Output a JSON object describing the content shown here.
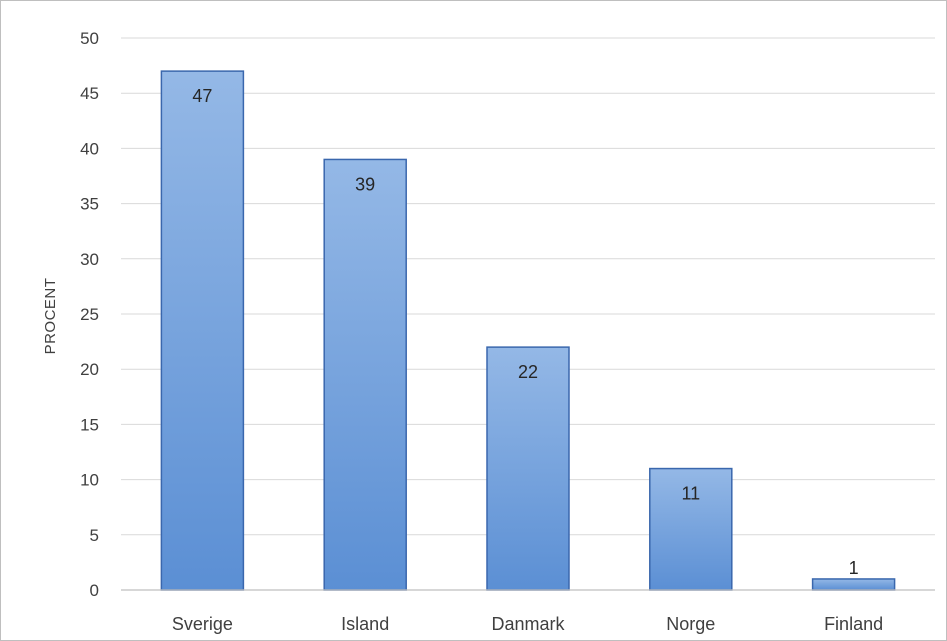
{
  "chart_data": {
    "type": "bar",
    "categories": [
      "Sverige",
      "Island",
      "Danmark",
      "Norge",
      "Finland"
    ],
    "values": [
      47,
      39,
      22,
      11,
      1
    ],
    "data_labels": [
      "47",
      "39",
      "22",
      "11",
      "1"
    ],
    "title": "",
    "xlabel": "",
    "ylabel": "PROCENT",
    "ylim": [
      0,
      50
    ],
    "yticks": [
      0,
      5,
      10,
      15,
      20,
      25,
      30,
      35,
      40,
      45,
      50
    ],
    "grid": true,
    "legend": "none",
    "colors": {
      "bar_top": "#94b8e6",
      "bar_bottom": "#5b8fd4",
      "bar_border": "#3a67ad",
      "grid": "#d9d9d9",
      "axis": "#bfbfbf"
    }
  }
}
